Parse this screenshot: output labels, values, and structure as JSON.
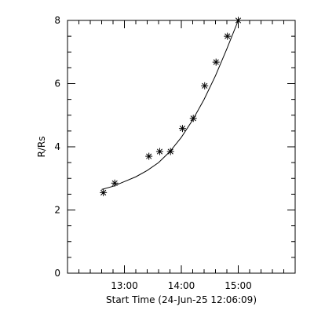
{
  "chart_data": {
    "type": "scatter",
    "title": "",
    "xlabel": "Start Time (24-Jun-25 12:06:09)",
    "ylabel": "R/Rs",
    "x_unit": "hours",
    "xlim": [
      12.0,
      16.0
    ],
    "ylim": [
      0,
      8
    ],
    "x_ticks": [
      {
        "value": 13.0,
        "label": "13:00"
      },
      {
        "value": 14.0,
        "label": "14:00"
      },
      {
        "value": 15.0,
        "label": "15:00"
      }
    ],
    "x_minor_ticks": [
      12.2,
      12.4,
      12.6,
      12.8,
      13.2,
      13.4,
      13.6,
      13.8,
      14.2,
      14.4,
      14.6,
      14.8,
      15.2,
      15.4,
      15.6,
      15.8
    ],
    "y_ticks": [
      {
        "value": 0,
        "label": "0"
      },
      {
        "value": 2,
        "label": "2"
      },
      {
        "value": 4,
        "label": "4"
      },
      {
        "value": 6,
        "label": "6"
      },
      {
        "value": 8,
        "label": "8"
      }
    ],
    "y_minor_ticks": [
      0.5,
      1,
      1.5,
      2.5,
      3,
      3.5,
      4.5,
      5,
      5.5,
      6.5,
      7,
      7.5
    ],
    "grid": false,
    "legend": "none",
    "marker": "asterisk",
    "series": [
      {
        "points": [
          {
            "x": 12.63,
            "y": 2.55
          },
          {
            "x": 12.83,
            "y": 2.85
          },
          {
            "x": 13.43,
            "y": 3.7
          },
          {
            "x": 13.62,
            "y": 3.85
          },
          {
            "x": 13.81,
            "y": 3.85
          },
          {
            "x": 14.02,
            "y": 4.58
          },
          {
            "x": 14.21,
            "y": 4.9
          },
          {
            "x": 14.41,
            "y": 5.93
          },
          {
            "x": 14.61,
            "y": 6.68
          },
          {
            "x": 14.81,
            "y": 7.5
          },
          {
            "x": 15.0,
            "y": 8.0
          }
        ]
      }
    ],
    "fit_curve": [
      {
        "x": 12.6,
        "y": 2.65
      },
      {
        "x": 12.8,
        "y": 2.75
      },
      {
        "x": 13.0,
        "y": 2.9
      },
      {
        "x": 13.2,
        "y": 3.05
      },
      {
        "x": 13.4,
        "y": 3.25
      },
      {
        "x": 13.6,
        "y": 3.5
      },
      {
        "x": 13.8,
        "y": 3.85
      },
      {
        "x": 14.0,
        "y": 4.3
      },
      {
        "x": 14.2,
        "y": 4.85
      },
      {
        "x": 14.4,
        "y": 5.5
      },
      {
        "x": 14.6,
        "y": 6.25
      },
      {
        "x": 14.8,
        "y": 7.1
      },
      {
        "x": 15.0,
        "y": 8.05
      }
    ]
  }
}
